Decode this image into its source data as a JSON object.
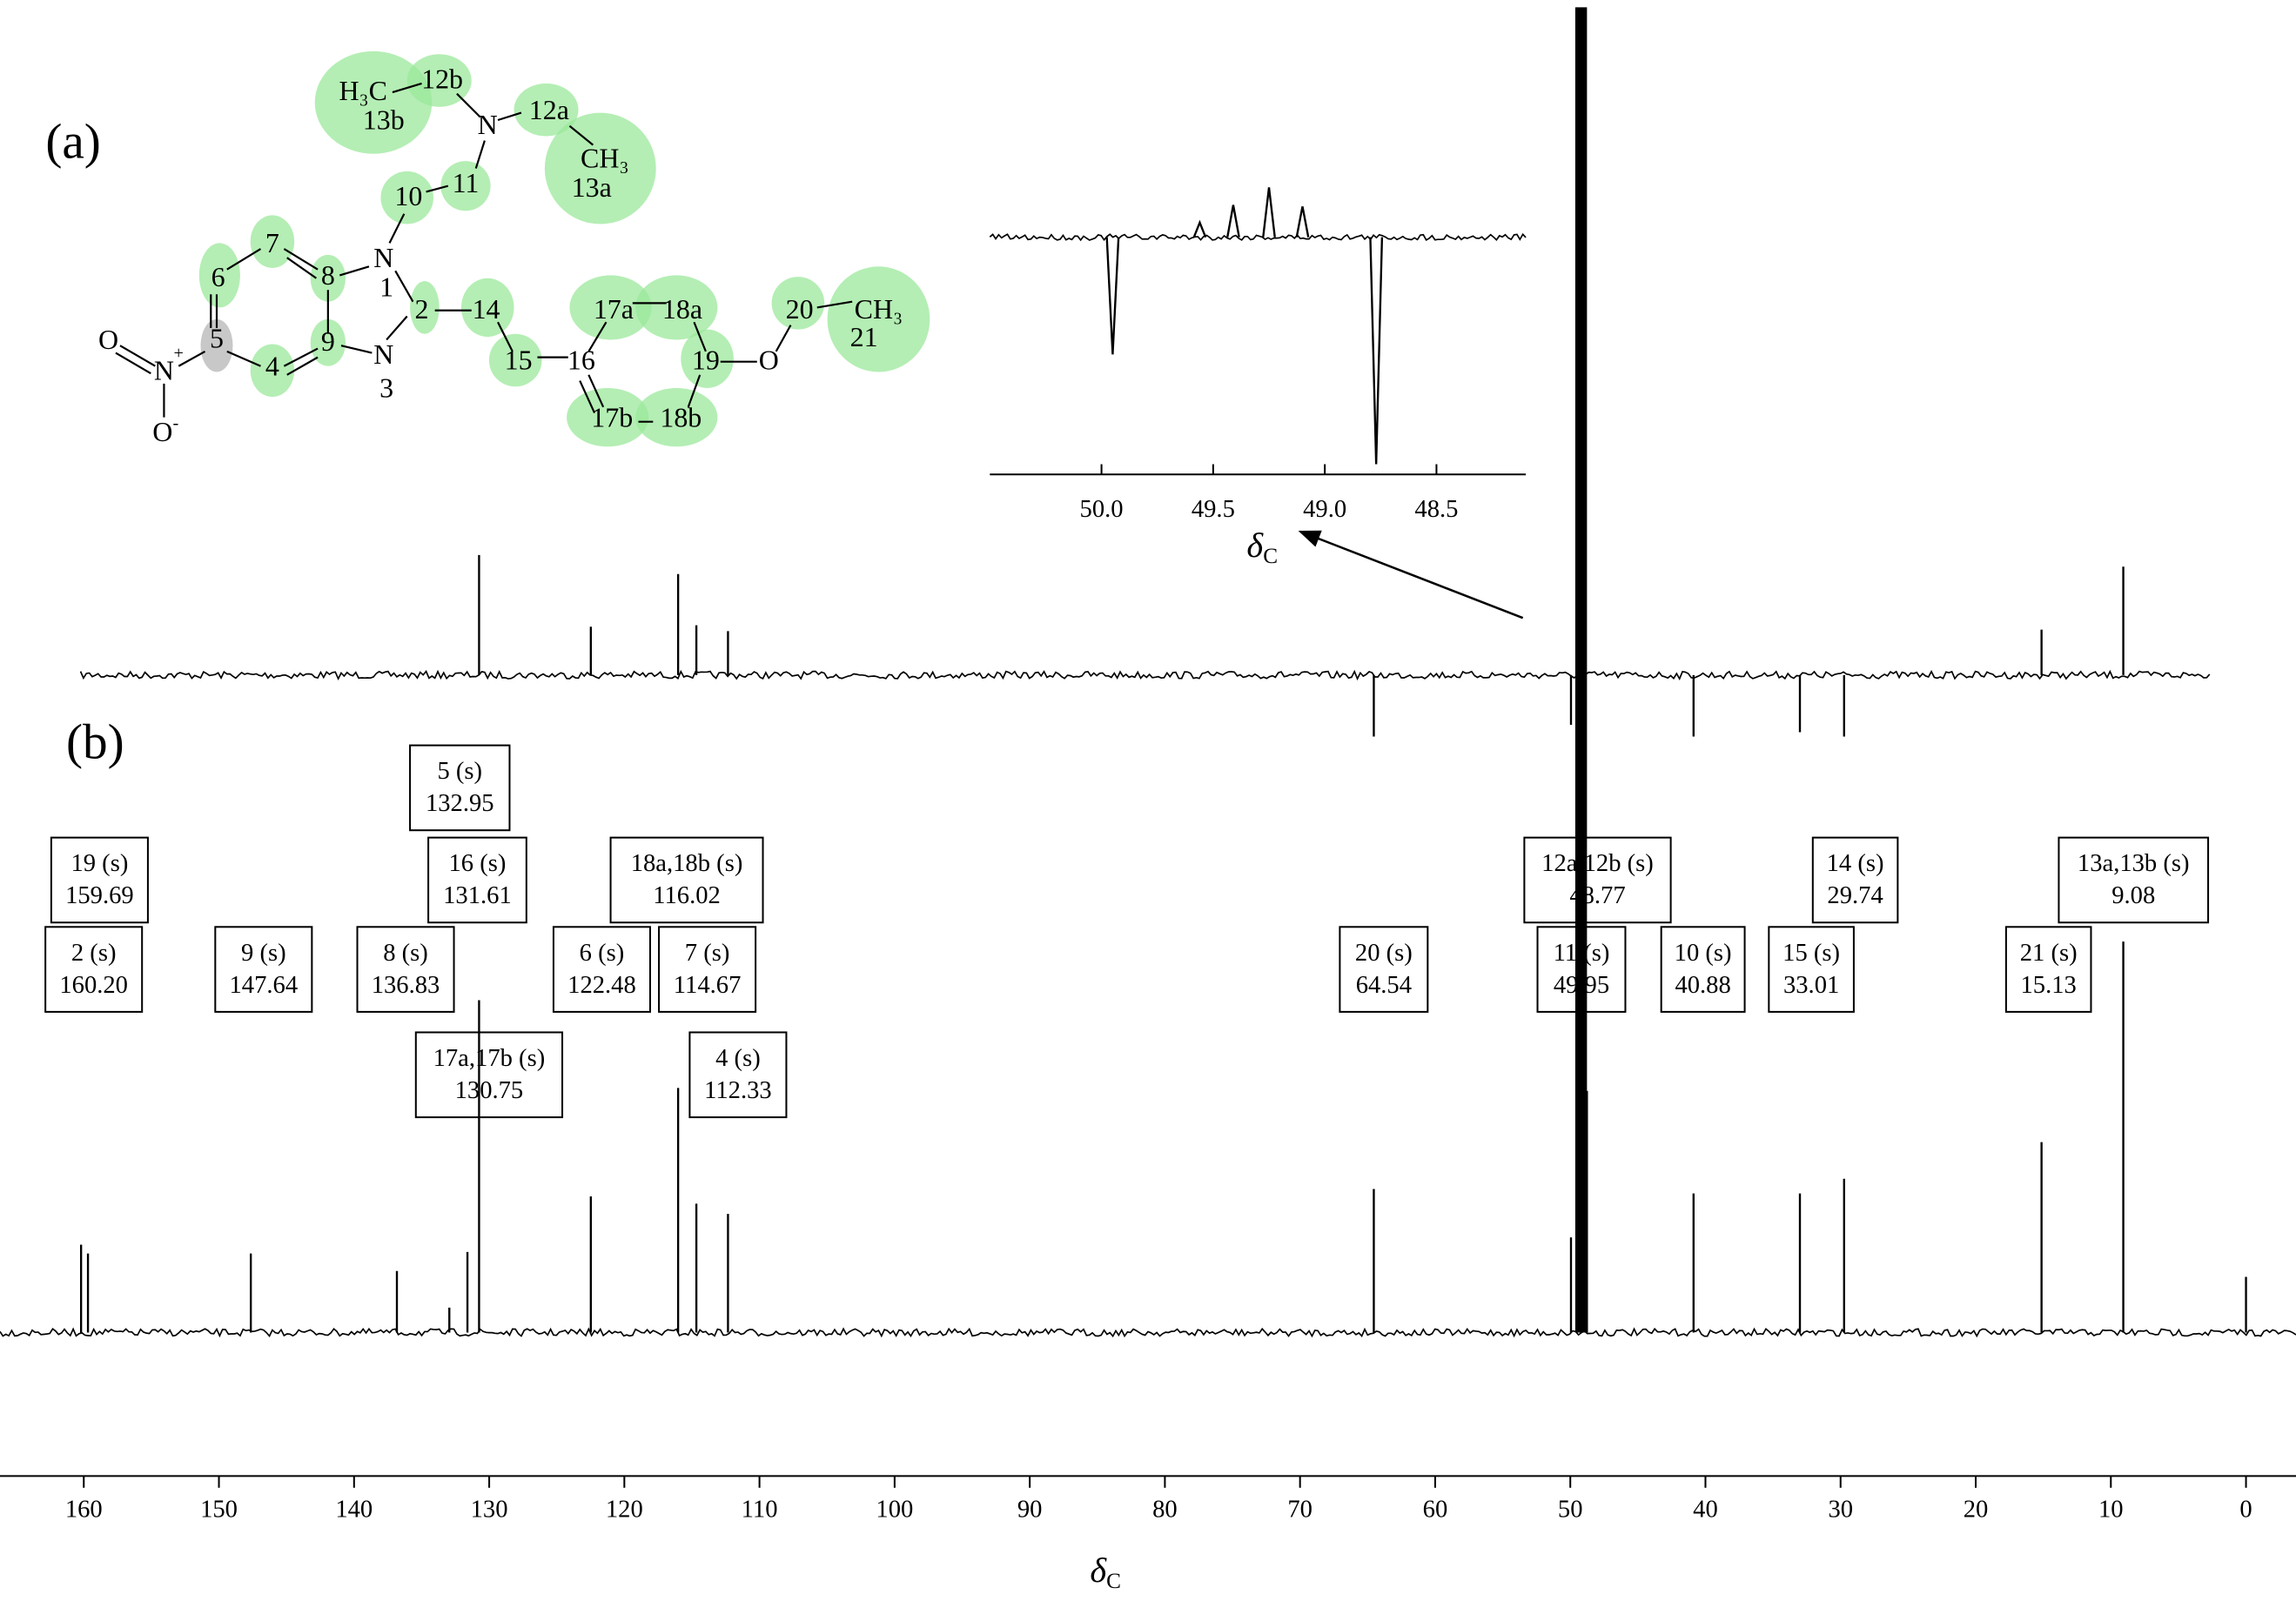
{
  "structure": {
    "labels": [
      "H₃C",
      "12b",
      "13b",
      "N",
      "12a",
      "CH₃",
      "13a",
      "10",
      "11",
      "N",
      "1",
      "7",
      "8",
      "6",
      "5",
      "9",
      "4",
      "2",
      "N",
      "3",
      "14",
      "15",
      "16",
      "17a",
      "18a",
      "19",
      "O",
      "20",
      "CH₃",
      "21",
      "17b",
      "18b",
      "O",
      "N",
      "+",
      "O",
      "-"
    ]
  },
  "chart_data": [
    {
      "type": "spectrum",
      "label": "(a)",
      "xlim": [
        166.2,
        -3.7
      ],
      "ylim": [
        -100,
        100
      ],
      "x": [
        130.75,
        122.48,
        116.02,
        114.67,
        112.33,
        64.54,
        49.95,
        40.88,
        33.01,
        29.74,
        15.13,
        9.08
      ],
      "values": [
        82,
        33,
        69,
        34,
        30,
        -42,
        -34,
        -42,
        -39,
        -42,
        31,
        74
      ]
    },
    {
      "type": "spectrum",
      "label": "(b)",
      "xlim": [
        166.2,
        -3.7
      ],
      "ylim": [
        0,
        300
      ],
      "xlabel": {
        "symbol": "δ",
        "sub": "C"
      },
      "xticks": [
        160,
        150,
        140,
        130,
        120,
        110,
        100,
        90,
        80,
        70,
        60,
        50,
        40,
        30,
        20,
        10,
        0
      ],
      "x": [
        160.2,
        159.69,
        147.64,
        136.83,
        132.95,
        131.61,
        130.75,
        122.48,
        116.02,
        114.67,
        112.33,
        64.54,
        49.95,
        48.77,
        40.88,
        33.01,
        29.74,
        15.13,
        9.08,
        0
      ],
      "values": [
        60,
        54,
        54,
        42,
        17,
        55,
        227,
        93,
        167,
        88,
        81,
        98,
        65,
        165,
        95,
        95,
        105,
        130,
        267,
        38
      ],
      "labels": [
        "2 (s)",
        "19 (s)",
        "9 (s)",
        "8 (s)",
        "5 (s)",
        "16 (s)",
        "17a,17b (s)",
        "6 (s)",
        "18a,18b (s)",
        "7 (s)",
        "4 (s)",
        "20 (s)",
        "11 (s)",
        "12a,12b (s)",
        "10 (s)",
        "15 (s)",
        "14 (s)",
        "21 (s)",
        "13a,13b (s)",
        null
      ],
      "x_labels": [
        "160.20",
        "159.69",
        "147.64",
        "136.83",
        "132.95",
        "131.61",
        "130.75",
        "122.48",
        "116.02",
        "114.67",
        "112.33",
        "64.54",
        "49.95",
        "48.77",
        "40.88",
        "33.01",
        "29.74",
        "15.13",
        "9.08",
        null
      ],
      "solvent": {
        "x": 49.2,
        "value": 905
      }
    },
    {
      "type": "spectrum",
      "xlim": [
        50.5,
        48.1
      ],
      "ylim": [
        -160,
        40
      ],
      "xlabel": {
        "symbol": "δ",
        "sub": "C"
      },
      "xticks": [
        {
          "value": 50,
          "label": "50.0"
        },
        49.5,
        {
          "value": 49,
          "label": "49.0"
        },
        48.5
      ],
      "x": [
        49.95,
        49.56,
        49.41,
        49.25,
        49.1,
        48.77
      ],
      "values": [
        -80,
        10,
        22,
        34,
        21,
        -155
      ]
    }
  ]
}
